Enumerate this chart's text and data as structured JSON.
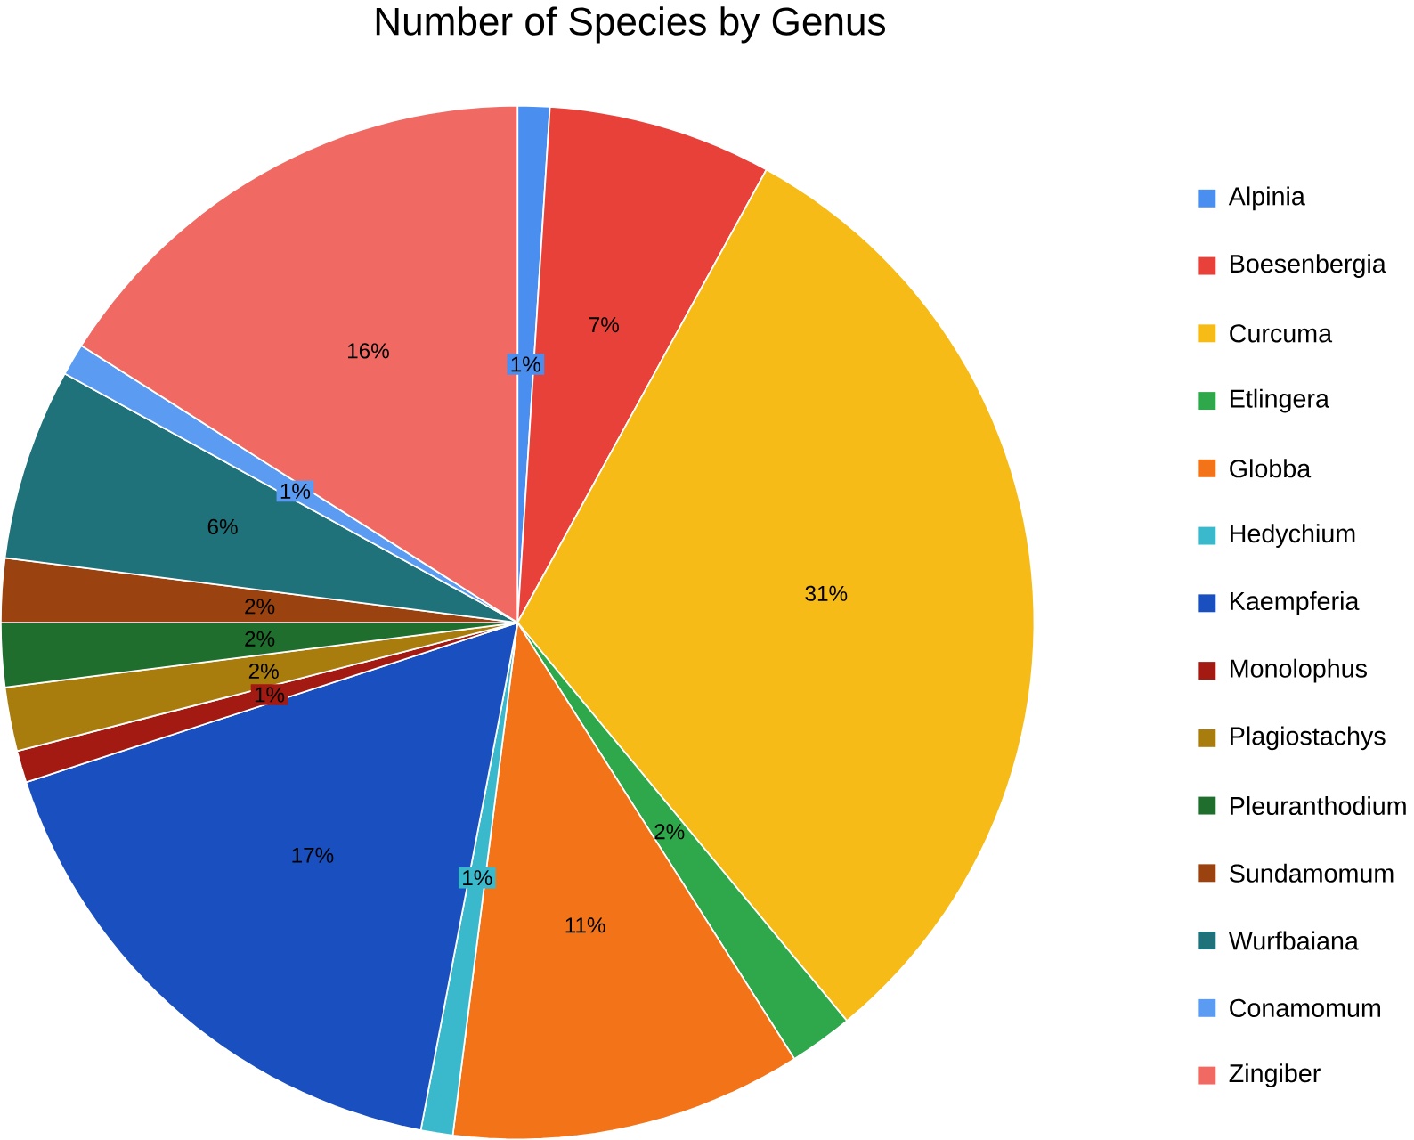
{
  "chart_data": {
    "type": "pie",
    "title": "Number of Species by Genus",
    "categories": [
      "Alpinia",
      "Boesenbergia",
      "Curcuma",
      "Etlingera",
      "Globba",
      "Hedychium",
      "Kaempferia",
      "Monolophus",
      "Plagiostachys",
      "Pleuranthodium",
      "Sundamomum",
      "Wurfbaiana",
      "Conamomum",
      "Zingiber"
    ],
    "values": [
      1,
      7,
      31,
      2,
      11,
      1,
      17,
      1,
      2,
      2,
      2,
      6,
      1,
      16
    ],
    "colors": [
      "#4a8ff0",
      "#e8413a",
      "#f6bb17",
      "#2ea84a",
      "#f27318",
      "#3bb9cc",
      "#1a4fbf",
      "#a31a13",
      "#a97c0e",
      "#1f6e2e",
      "#9b4310",
      "#1f727a",
      "#5b9cf2",
      "#f06a63"
    ],
    "value_labels": [
      "1%",
      "7%",
      "31%",
      "2%",
      "11%",
      "1%",
      "17%",
      "1%",
      "2%",
      "2%",
      "2%",
      "6%",
      "1%",
      "16%"
    ],
    "legend": "right"
  }
}
